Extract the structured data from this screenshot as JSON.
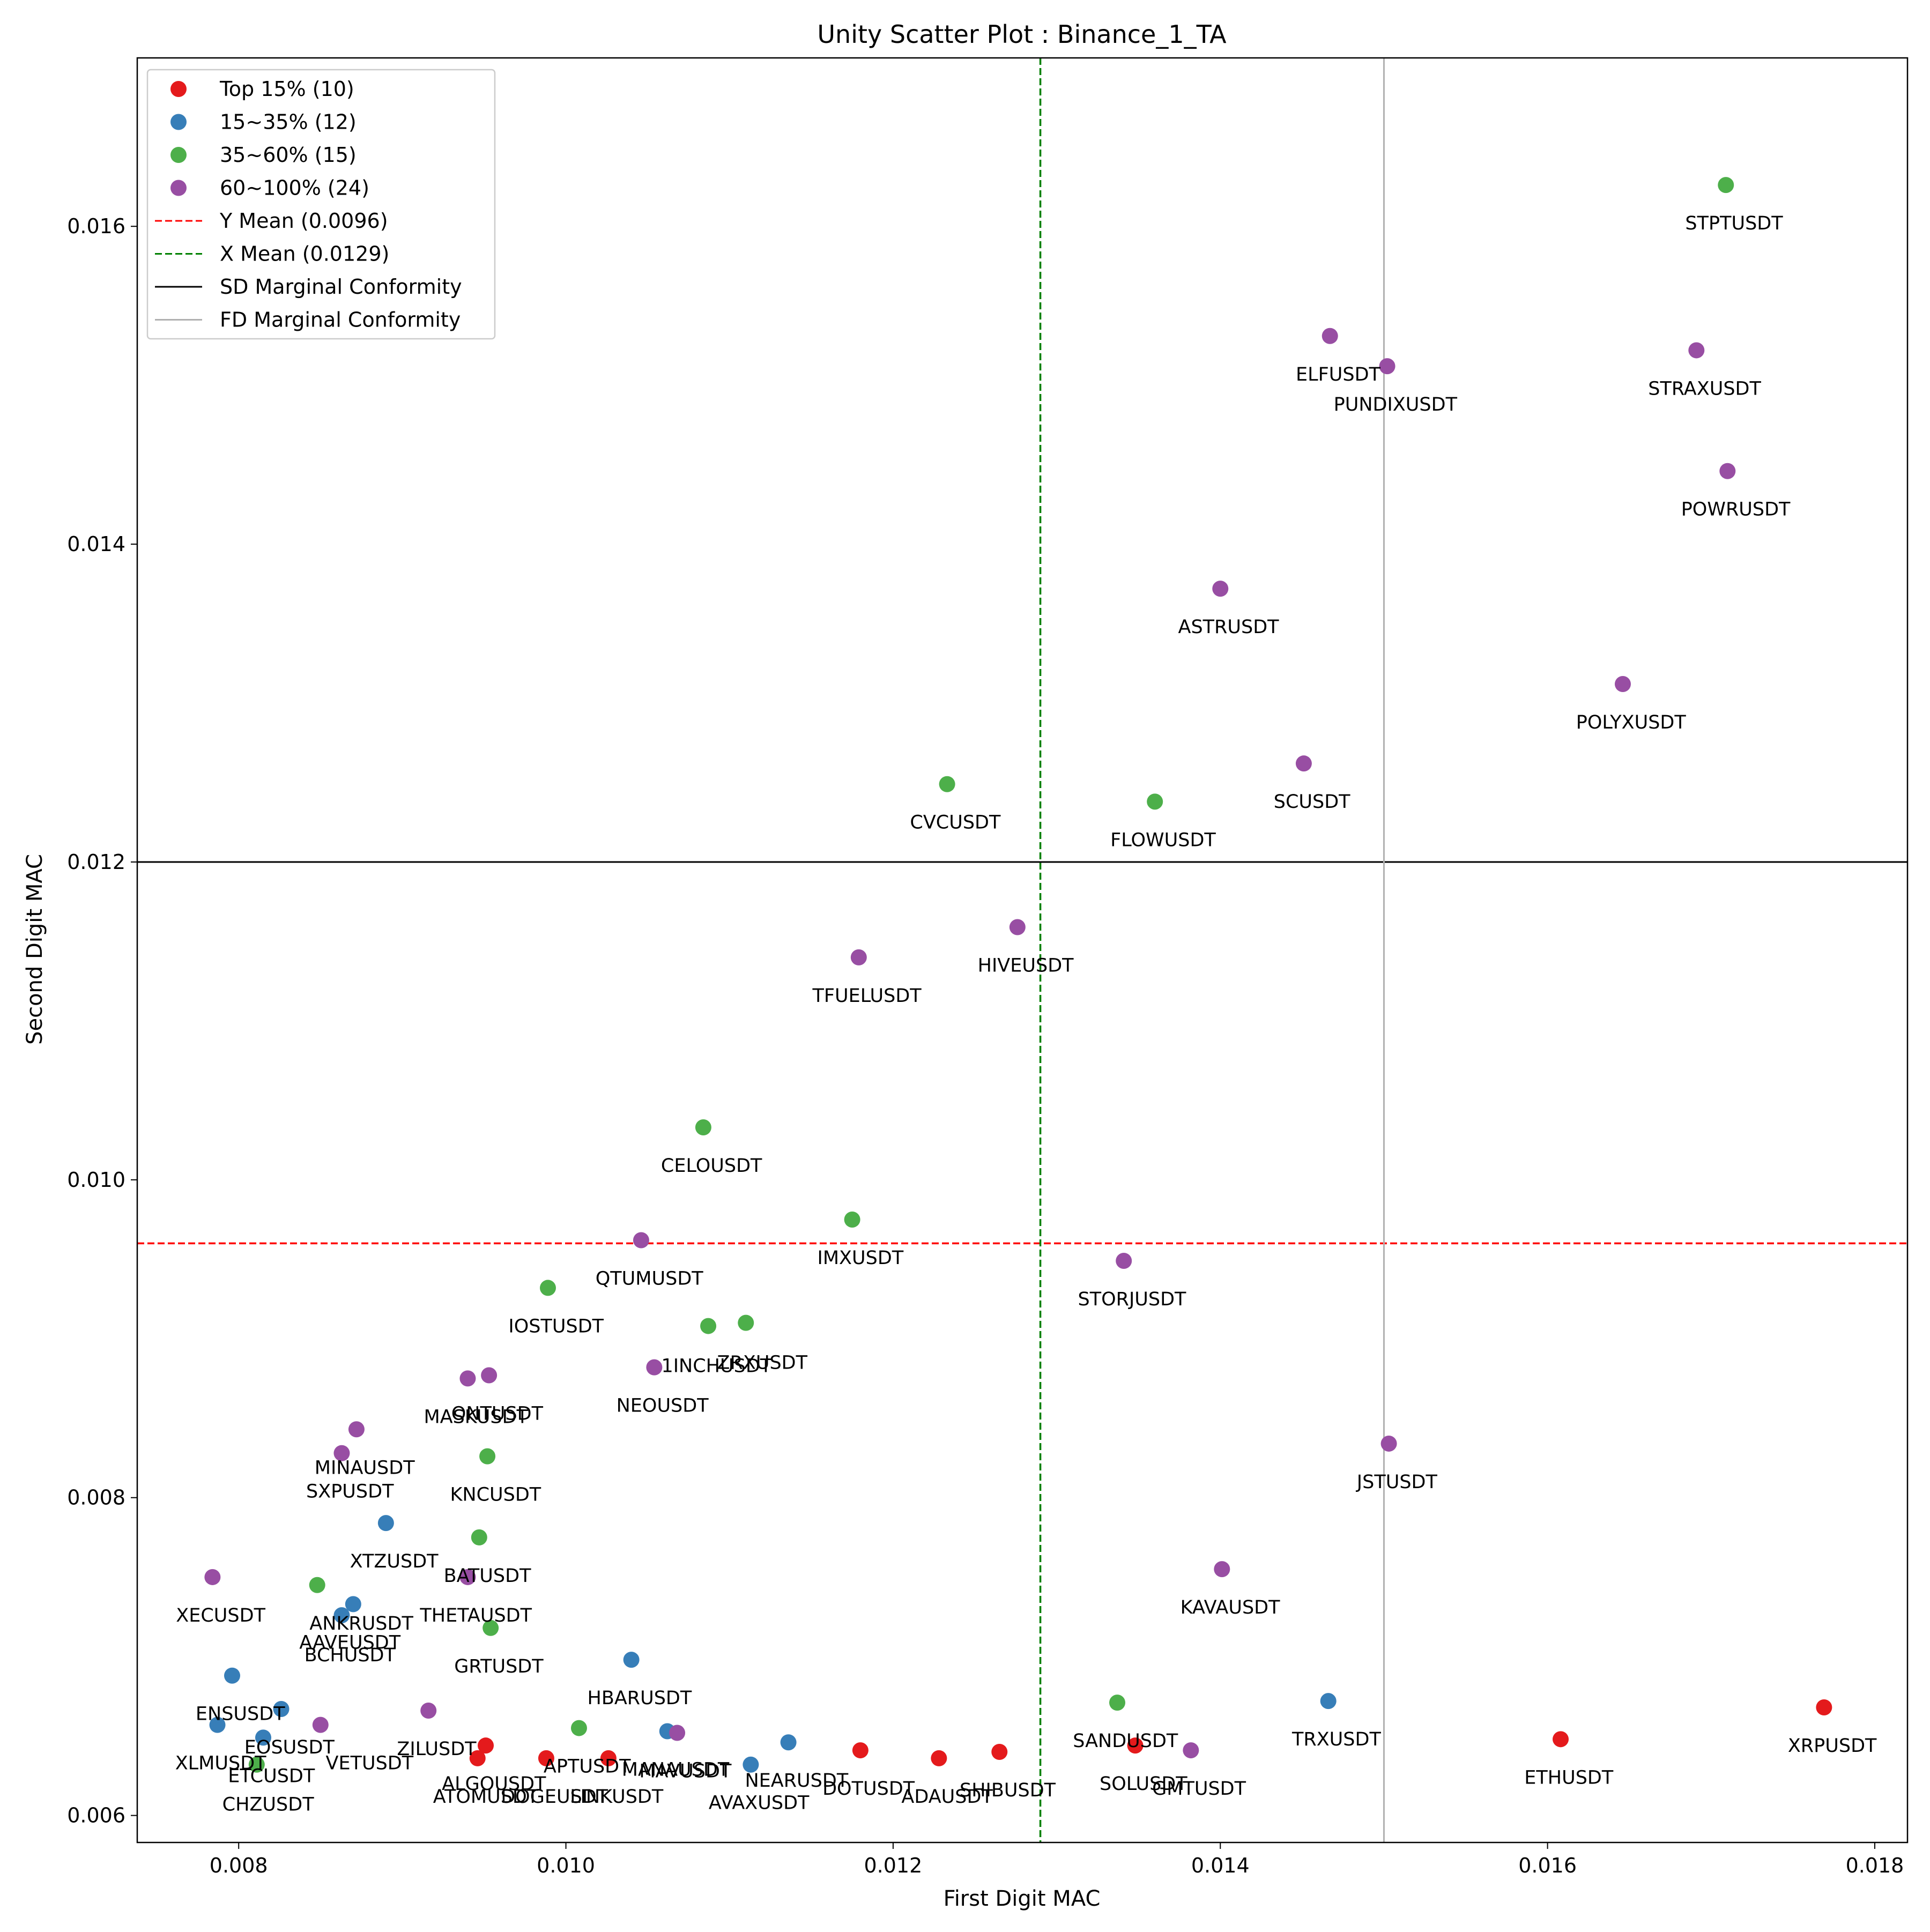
{
  "chart_data": {
    "type": "scatter",
    "title": "Unity Scatter Plot : Binance_1_TA",
    "xlabel": "First Digit MAC",
    "ylabel": "Second Digit MAC",
    "xlim": [
      0.00738,
      0.0182
    ],
    "ylim": [
      0.00583,
      0.01706
    ],
    "xticks": [
      "0.008",
      "0.010",
      "0.012",
      "0.014",
      "0.016",
      "0.018"
    ],
    "xtick_values": [
      0.008,
      0.01,
      0.012,
      0.014,
      0.016,
      0.018
    ],
    "yticks": [
      "0.006",
      "0.008",
      "0.010",
      "0.012",
      "0.014",
      "0.016"
    ],
    "ytick_values": [
      0.006,
      0.008,
      0.01,
      0.012,
      0.014,
      0.016
    ],
    "grid": false,
    "legend_position": "top-left",
    "colors": {
      "red": "#e41a1c",
      "blue": "#377eb8",
      "green": "#4daf4a",
      "purple": "#984ea3",
      "y_mean_line": "#ff0000",
      "x_mean_line": "#008000",
      "sd_line": "#000000",
      "fd_line": "#b0b0b0"
    },
    "reference_lines": [
      {
        "id": "y-mean",
        "orient": "h",
        "value": 0.0096,
        "style": "dashed",
        "color": "#ff0000",
        "label": "Y Mean (0.0096)"
      },
      {
        "id": "x-mean",
        "orient": "v",
        "value": 0.0129,
        "style": "dashed",
        "color": "#008000",
        "label": "X Mean (0.0129)"
      },
      {
        "id": "sd-conformity",
        "orient": "h",
        "value": 0.012,
        "style": "solid",
        "color": "#000000",
        "label": "SD Marginal Conformity"
      },
      {
        "id": "fd-conformity",
        "orient": "v",
        "value": 0.015,
        "style": "solid",
        "color": "#b0b0b0",
        "label": "FD Marginal Conformity"
      }
    ],
    "series": [
      {
        "name": "Top 15% (10)",
        "color": "#e41a1c",
        "points": [
          {
            "label": "XRPUSDT",
            "x": 0.01769,
            "y": 0.00668
          },
          {
            "label": "ETHUSDT",
            "x": 0.01608,
            "y": 0.00648
          },
          {
            "label": "SOLUSDT",
            "x": 0.01348,
            "y": 0.00644
          },
          {
            "label": "SHIBUSDT",
            "x": 0.01265,
            "y": 0.0064
          },
          {
            "label": "ADAUSDT",
            "x": 0.01228,
            "y": 0.00636
          },
          {
            "label": "DOTUSDT",
            "x": 0.0118,
            "y": 0.00641
          },
          {
            "label": "LINKUSDT",
            "x": 0.01026,
            "y": 0.00636
          },
          {
            "label": "DOGEUSDT",
            "x": 0.00988,
            "y": 0.00636
          },
          {
            "label": "ALGOUSDT",
            "x": 0.00951,
            "y": 0.00644
          },
          {
            "label": "ATOMUSDT",
            "x": 0.00946,
            "y": 0.00636
          }
        ]
      },
      {
        "name": "15~35% (12)",
        "color": "#377eb8",
        "points": [
          {
            "label": "XTZUSDT",
            "x": 0.0089,
            "y": 0.00784
          },
          {
            "label": "ANKRUSDT",
            "x": 0.0087,
            "y": 0.00733
          },
          {
            "label": "AAVEUSDT",
            "x": 0.00863,
            "y": 0.00726
          },
          {
            "label": "HBARUSDT",
            "x": 0.0104,
            "y": 0.00698
          },
          {
            "label": "BCHUSDT",
            "x": 0.00796,
            "y": 0.00688
          },
          {
            "label": "TRXUSDT",
            "x": 0.01466,
            "y": 0.00672
          },
          {
            "label": "EOSUSDT",
            "x": 0.00826,
            "y": 0.00667
          },
          {
            "label": "ENSUSDT",
            "x": 0.00787,
            "y": 0.00657
          },
          {
            "label": "VETUSDT",
            "x": 0.00815,
            "y": 0.00649
          },
          {
            "label": "MANAUSDT",
            "x": 0.01062,
            "y": 0.00653
          },
          {
            "label": "NEARUSDT",
            "x": 0.01136,
            "y": 0.00646
          },
          {
            "label": "AVAXUSDT",
            "x": 0.01113,
            "y": 0.00632
          }
        ]
      },
      {
        "name": "35~60% (15)",
        "color": "#4daf4a",
        "points": [
          {
            "label": "STPTUSDT",
            "x": 0.01709,
            "y": 0.01626
          },
          {
            "label": "CVCUSDT",
            "x": 0.01233,
            "y": 0.01249
          },
          {
            "label": "FLOWUSDT",
            "x": 0.0136,
            "y": 0.01238
          },
          {
            "label": "CELOUSDT",
            "x": 0.01084,
            "y": 0.01033
          },
          {
            "label": "IMXUSDT",
            "x": 0.01175,
            "y": 0.00975
          },
          {
            "label": "IOSTUSDT",
            "x": 0.00989,
            "y": 0.00932
          },
          {
            "label": "ZRXUSDT",
            "x": 0.01087,
            "y": 0.00908
          },
          {
            "label": "1INCHUSDT",
            "x": 0.0111,
            "y": 0.0091
          },
          {
            "label": "KNCUSDT",
            "x": 0.00952,
            "y": 0.00826
          },
          {
            "label": "BATUSDT",
            "x": 0.00947,
            "y": 0.00775
          },
          {
            "label": "GRTUSDT",
            "x": 0.00954,
            "y": 0.00718
          },
          {
            "label": "SANDUSDT",
            "x": 0.01337,
            "y": 0.00671
          },
          {
            "label": "XECUSDT",
            "x": 0.00848,
            "y": 0.00745
          },
          {
            "label": "APTUSDT",
            "x": 0.01008,
            "y": 0.00655
          },
          {
            "label": "ETCUSDT",
            "x": 0.00811,
            "y": 0.00632
          }
        ]
      },
      {
        "name": "60~100% (24)",
        "color": "#984ea3",
        "points": [
          {
            "label": "ELFUSDT",
            "x": 0.01467,
            "y": 0.01531
          },
          {
            "label": "PUNDIXUSDT",
            "x": 0.01502,
            "y": 0.01512
          },
          {
            "label": "STRAXUSDT",
            "x": 0.01691,
            "y": 0.01522
          },
          {
            "label": "POWRUSDT",
            "x": 0.0171,
            "y": 0.01446
          },
          {
            "label": "ASTRUSDT",
            "x": 0.014,
            "y": 0.01372
          },
          {
            "label": "POLYXUSDT",
            "x": 0.01646,
            "y": 0.01312
          },
          {
            "label": "SCUSDT",
            "x": 0.01451,
            "y": 0.01262
          },
          {
            "label": "HIVEUSDT",
            "x": 0.01276,
            "y": 0.01159
          },
          {
            "label": "TFUELUSDT",
            "x": 0.01179,
            "y": 0.0114
          },
          {
            "label": "QTUMUSDT",
            "x": 0.01046,
            "y": 0.00962
          },
          {
            "label": "STORJUSDT",
            "x": 0.01341,
            "y": 0.00949
          },
          {
            "label": "NEOUSDT",
            "x": 0.01054,
            "y": 0.00882
          },
          {
            "label": "MASKUSDT",
            "x": 0.0094,
            "y": 0.00875
          },
          {
            "label": "ONTUSDT",
            "x": 0.00953,
            "y": 0.00877
          },
          {
            "label": "MINAUSDT",
            "x": 0.00872,
            "y": 0.00843
          },
          {
            "label": "SXPUSDT",
            "x": 0.00863,
            "y": 0.00828
          },
          {
            "label": "JSTUSDT",
            "x": 0.01503,
            "y": 0.00834
          },
          {
            "label": "KAVAUSDT",
            "x": 0.01401,
            "y": 0.00755
          },
          {
            "label": "XLMUSDT",
            "x": 0.00784,
            "y": 0.0075
          },
          {
            "label": "THETAUSDT",
            "x": 0.0094,
            "y": 0.0075
          },
          {
            "label": "ZILUSDT",
            "x": 0.00916,
            "y": 0.00666
          },
          {
            "label": "CHZUSDT",
            "x": 0.0085,
            "y": 0.00657
          },
          {
            "label": "MAVUSDT",
            "x": 0.01068,
            "y": 0.00652
          },
          {
            "label": "GMTUSDT",
            "x": 0.01382,
            "y": 0.00641
          }
        ]
      }
    ],
    "text_labels": [
      {
        "text": "STPTUSDT",
        "x": 0.01714,
        "y": 0.01598
      },
      {
        "text": "ELFUSDT",
        "x": 0.01472,
        "y": 0.01503
      },
      {
        "text": "STRAXUSDT",
        "x": 0.01696,
        "y": 0.01494
      },
      {
        "text": "PUNDIXUSDT",
        "x": 0.01507,
        "y": 0.01484
      },
      {
        "text": "POWRUSDT",
        "x": 0.01715,
        "y": 0.01418
      },
      {
        "text": "ASTRUSDT",
        "x": 0.01405,
        "y": 0.01344
      },
      {
        "text": "POLYXUSDT",
        "x": 0.01651,
        "y": 0.01284
      },
      {
        "text": "CVCUSDT",
        "x": 0.01238,
        "y": 0.01221
      },
      {
        "text": "SCUSDT",
        "x": 0.01456,
        "y": 0.01234
      },
      {
        "text": "FLOWUSDT",
        "x": 0.01365,
        "y": 0.0121
      },
      {
        "text": "HIVEUSDT",
        "x": 0.01281,
        "y": 0.01131
      },
      {
        "text": "TFUELUSDT",
        "x": 0.01184,
        "y": 0.01112
      },
      {
        "text": "CELOUSDT",
        "x": 0.01089,
        "y": 0.01005
      },
      {
        "text": "IMXUSDT",
        "x": 0.0118,
        "y": 0.00947
      },
      {
        "text": "QTUMUSDT",
        "x": 0.01051,
        "y": 0.00934
      },
      {
        "text": "STORJUSDT",
        "x": 0.01346,
        "y": 0.00921
      },
      {
        "text": "IOSTUSDT",
        "x": 0.00994,
        "y": 0.00904
      },
      {
        "text": "ZRXUSDT",
        "x": 0.0112,
        "y": 0.00881
      },
      {
        "text": "1INCHUSDT",
        "x": 0.01092,
        "y": 0.00879
      },
      {
        "text": "NEOUSDT",
        "x": 0.01059,
        "y": 0.00854
      },
      {
        "text": "ONTUSDT",
        "x": 0.00958,
        "y": 0.00849
      },
      {
        "text": "MASKUSDT",
        "x": 0.00945,
        "y": 0.00847
      },
      {
        "text": "JSTUSDT",
        "x": 0.01508,
        "y": 0.00806
      },
      {
        "text": "KNCUSDT",
        "x": 0.00957,
        "y": 0.00798
      },
      {
        "text": "MINAUSDT",
        "x": 0.00877,
        "y": 0.00815
      },
      {
        "text": "SXPUSDT",
        "x": 0.00868,
        "y": 0.008
      },
      {
        "text": "XTZUSDT",
        "x": 0.00895,
        "y": 0.00756
      },
      {
        "text": "BATUSDT",
        "x": 0.00952,
        "y": 0.00747
      },
      {
        "text": "KAVAUSDT",
        "x": 0.01406,
        "y": 0.00727
      },
      {
        "text": "XECUSDT",
        "x": 0.00789,
        "y": 0.00722
      },
      {
        "text": "THETAUSDT",
        "x": 0.00945,
        "y": 0.00722
      },
      {
        "text": "ANKRUSDT",
        "x": 0.00875,
        "y": 0.00717
      },
      {
        "text": "AAVEUSDT",
        "x": 0.00868,
        "y": 0.00705
      },
      {
        "text": "BCHUSDT",
        "x": 0.00868,
        "y": 0.00697
      },
      {
        "text": "GRTUSDT",
        "x": 0.00959,
        "y": 0.0069
      },
      {
        "text": "HBARUSDT",
        "x": 0.01045,
        "y": 0.0067
      },
      {
        "text": "ENSUSDT",
        "x": 0.00801,
        "y": 0.0066
      },
      {
        "text": "SANDUSDT",
        "x": 0.01342,
        "y": 0.00643
      },
      {
        "text": "TRXUSDT",
        "x": 0.01471,
        "y": 0.00644
      },
      {
        "text": "XRPUSDT",
        "x": 0.01774,
        "y": 0.0064
      },
      {
        "text": "EOSUSDT",
        "x": 0.00831,
        "y": 0.00639
      },
      {
        "text": "ZILUSDT",
        "x": 0.00921,
        "y": 0.00638
      },
      {
        "text": "APTUSDT",
        "x": 0.01013,
        "y": 0.00627
      },
      {
        "text": "MAVUSDT",
        "x": 0.01073,
        "y": 0.00624
      },
      {
        "text": "MANAUSDT",
        "x": 0.01067,
        "y": 0.00625
      },
      {
        "text": "XLMUSDT",
        "x": 0.00789,
        "y": 0.00629
      },
      {
        "text": "VETUSDT",
        "x": 0.0088,
        "y": 0.00629
      },
      {
        "text": "ETCUSDT",
        "x": 0.0082,
        "y": 0.00621
      },
      {
        "text": "ETHUSDT",
        "x": 0.01613,
        "y": 0.0062
      },
      {
        "text": "NEARUSDT",
        "x": 0.01141,
        "y": 0.00618
      },
      {
        "text": "ALGOUSDT",
        "x": 0.00956,
        "y": 0.00616
      },
      {
        "text": "SOLUSDT",
        "x": 0.01353,
        "y": 0.00616
      },
      {
        "text": "GMTUSDT",
        "x": 0.01387,
        "y": 0.00613
      },
      {
        "text": "DOTUSDT",
        "x": 0.01185,
        "y": 0.00613
      },
      {
        "text": "SHIBUSDT",
        "x": 0.0127,
        "y": 0.00612
      },
      {
        "text": "ADAUSDT",
        "x": 0.01233,
        "y": 0.00608
      },
      {
        "text": "ATOMUSDT",
        "x": 0.00951,
        "y": 0.00608
      },
      {
        "text": "DOGEUSDT",
        "x": 0.00993,
        "y": 0.00608
      },
      {
        "text": "LINKUSDT",
        "x": 0.01031,
        "y": 0.00608
      },
      {
        "text": "AVAXUSDT",
        "x": 0.01118,
        "y": 0.00604
      },
      {
        "text": "CHZUSDT",
        "x": 0.00818,
        "y": 0.00603
      }
    ],
    "legend": [
      {
        "kind": "marker",
        "color": "#e41a1c",
        "text": "Top 15% (10)"
      },
      {
        "kind": "marker",
        "color": "#377eb8",
        "text": "15~35% (12)"
      },
      {
        "kind": "marker",
        "color": "#4daf4a",
        "text": "35~60% (15)"
      },
      {
        "kind": "marker",
        "color": "#984ea3",
        "text": "60~100% (24)"
      },
      {
        "kind": "line",
        "color": "#ff0000",
        "style": "dashed",
        "text": "Y Mean (0.0096)"
      },
      {
        "kind": "line",
        "color": "#008000",
        "style": "dashed",
        "text": "X Mean (0.0129)"
      },
      {
        "kind": "line",
        "color": "#000000",
        "style": "solid",
        "text": "SD Marginal Conformity"
      },
      {
        "kind": "line",
        "color": "#b0b0b0",
        "style": "solid",
        "text": "FD Marginal Conformity"
      }
    ]
  }
}
